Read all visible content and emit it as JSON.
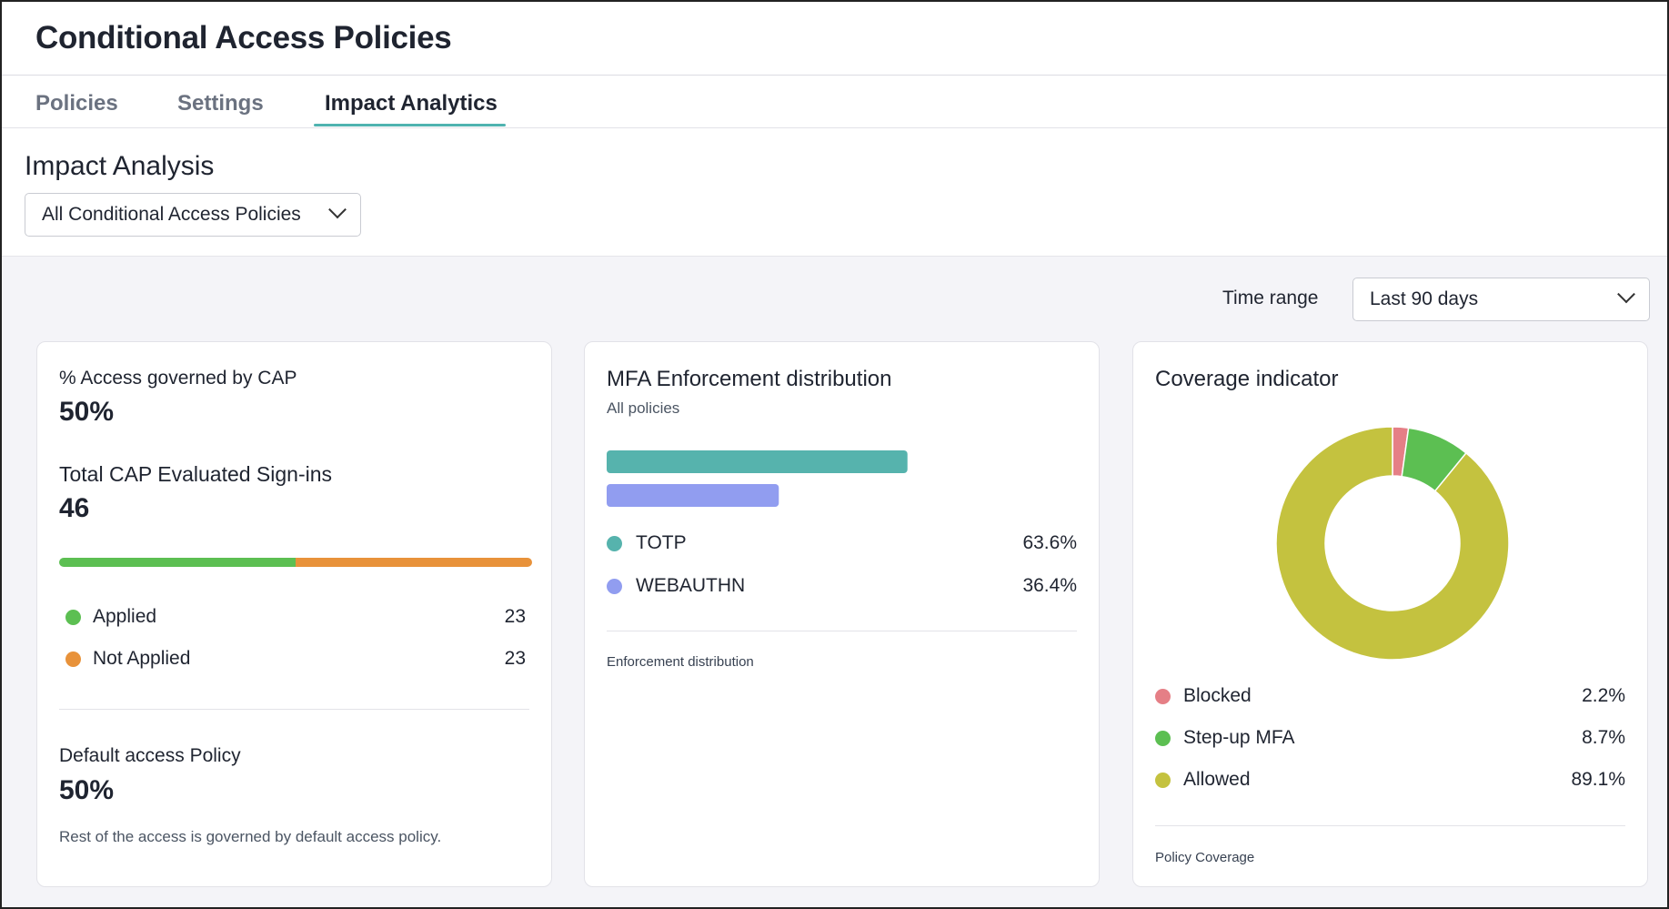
{
  "header": {
    "title": "Conditional Access Policies"
  },
  "tabs": [
    {
      "label": "Policies"
    },
    {
      "label": "Settings"
    },
    {
      "label": "Impact Analytics"
    }
  ],
  "analysis": {
    "title": "Impact Analysis",
    "policy_select": "All Conditional Access Policies",
    "time_range_label": "Time range",
    "time_range_value": "Last 90 days"
  },
  "colors": {
    "applied": "#5cbf52",
    "not_applied": "#e8923a",
    "totp": "#56b3ad",
    "webauthn": "#919df0",
    "blocked": "#e57f86",
    "stepup": "#5cbf52",
    "allowed": "#c4c23f"
  },
  "access_card": {
    "governed_label": "% Access governed by CAP",
    "governed_value": "50%",
    "signins_label": "Total CAP Evaluated Sign-ins",
    "signins_value": "46",
    "legend": [
      {
        "label": "Applied",
        "value": "23"
      },
      {
        "label": "Not Applied",
        "value": "23"
      }
    ],
    "default_label": "Default access Policy",
    "default_value": "50%",
    "default_note": "Rest of the access is governed by default access policy."
  },
  "mfa_card": {
    "title": "MFA Enforcement distribution",
    "subtitle": "All policies",
    "legend": [
      {
        "label": "TOTP",
        "value": "63.6%"
      },
      {
        "label": "WEBAUTHN",
        "value": "36.4%"
      }
    ],
    "footer": "Enforcement distribution"
  },
  "coverage_card": {
    "title": "Coverage indicator",
    "legend": [
      {
        "label": "Blocked",
        "value": "2.2%"
      },
      {
        "label": "Step-up MFA",
        "value": "8.7%"
      },
      {
        "label": "Allowed",
        "value": "89.1%"
      }
    ],
    "footer": "Policy Coverage"
  },
  "chart_data": [
    {
      "type": "bar",
      "categories": [
        "Applied",
        "Not Applied"
      ],
      "values": [
        23,
        23
      ]
    },
    {
      "type": "bar",
      "categories": [
        "TOTP",
        "WEBAUTHN"
      ],
      "values": [
        63.6,
        36.4
      ]
    },
    {
      "type": "pie",
      "categories": [
        "Blocked",
        "Step-up MFA",
        "Allowed"
      ],
      "values": [
        2.2,
        8.7,
        89.1
      ]
    }
  ]
}
